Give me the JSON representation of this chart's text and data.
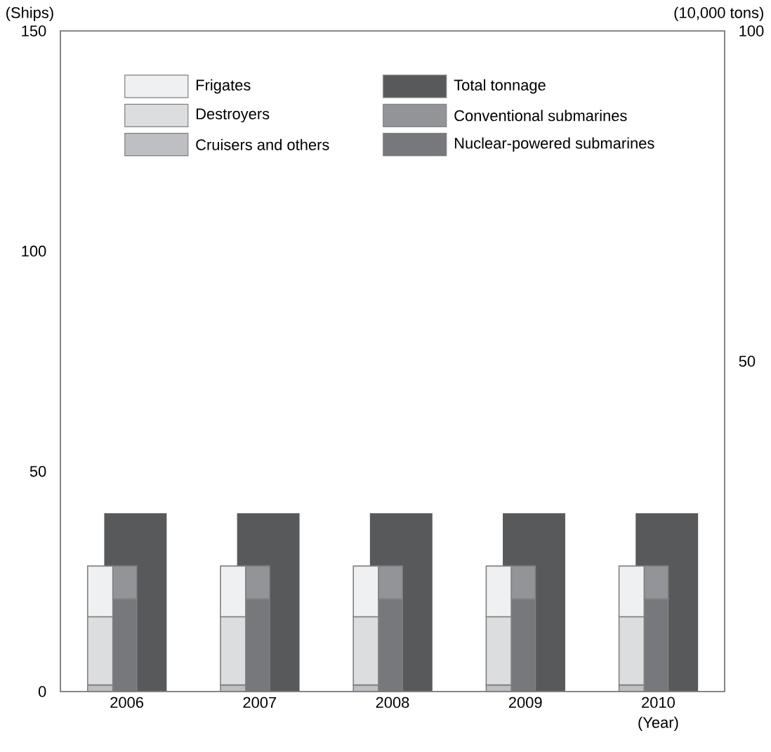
{
  "chart_data": [
    {
      "type": "bar",
      "stacked": true,
      "xlabel": "(Year)",
      "ylabel": "(Ships)",
      "categories": [
        "2006",
        "2007",
        "2008",
        "2009",
        "2010"
      ],
      "series": [
        {
          "name": "Cruisers and others",
          "color": "#bebfc2",
          "values": [
            1.5,
            1.5,
            1.5,
            1.5,
            1.5
          ]
        },
        {
          "name": "Destroyers",
          "color": "#dcdddf",
          "values": [
            15.5,
            15.5,
            15.5,
            15.5,
            15.5
          ]
        },
        {
          "name": "Frigates",
          "color": "#eff0f2",
          "values": [
            11.5,
            11.5,
            11.5,
            11.5,
            11.5
          ]
        }
      ],
      "legend": "top",
      "ylim": [
        0,
        150
      ],
      "yticks": [
        0,
        50,
        100,
        150
      ]
    },
    {
      "type": "bar",
      "stacked": true,
      "categories": [
        "2006",
        "2007",
        "2008",
        "2009",
        "2010"
      ],
      "series": [
        {
          "name": "Nuclear-powered submarines",
          "color": "#77787b",
          "values": [
            21,
            21,
            21,
            21,
            21
          ]
        },
        {
          "name": "Conventional submarines",
          "color": "#939497",
          "values": [
            7.5,
            7.5,
            7.5,
            7.5,
            7.5
          ]
        }
      ],
      "legend": "top",
      "ylim": [
        0,
        150
      ],
      "yticks": [
        0,
        50,
        100,
        150
      ],
      "tick_labels": false
    },
    {
      "type": "bar",
      "ylabel": "(10,000 tons)",
      "categories": [
        "2006",
        "2007",
        "2008",
        "2009",
        "2010"
      ],
      "series": [
        {
          "name": "Total tonnage",
          "color": "#58595b",
          "values": [
            27,
            27,
            27,
            27,
            27
          ]
        }
      ],
      "legend": "top",
      "ylim": [
        0,
        100
      ],
      "yticks": [
        50,
        100
      ],
      "tick_labels": "y"
    }
  ]
}
